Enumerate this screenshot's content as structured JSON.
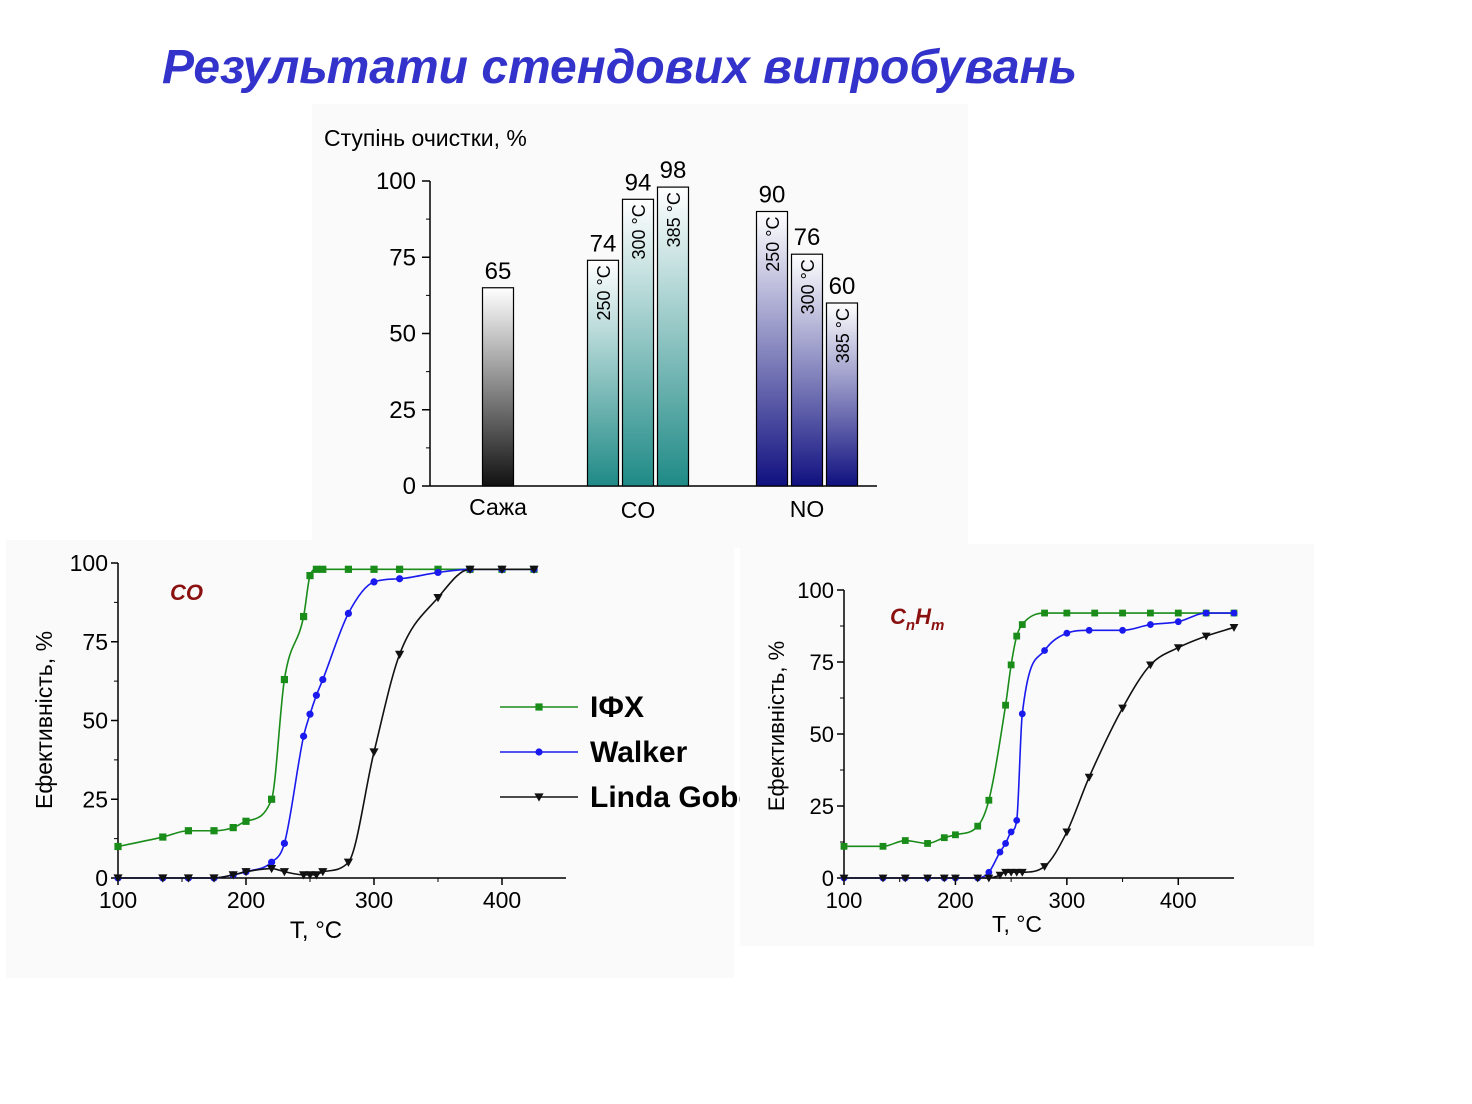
{
  "slide": {
    "title": "Результати стендових випробувань"
  },
  "chart_data": [
    {
      "type": "bar",
      "ylabel": "Ступінь очистки, %",
      "ylim": [
        0,
        100
      ],
      "yticks": [
        0,
        25,
        50,
        75,
        100
      ],
      "groups": [
        {
          "name": "Сажа",
          "bars": [
            {
              "value": 65,
              "temp": ""
            }
          ],
          "colors": [
            "#111111",
            "#ffffff"
          ]
        },
        {
          "name": "CO",
          "bars": [
            {
              "value": 74,
              "temp": "250 °C"
            },
            {
              "value": 94,
              "temp": "300 °C"
            },
            {
              "value": 98,
              "temp": "385 °C"
            }
          ],
          "colors": [
            "#1f8a86",
            "#ffffff"
          ]
        },
        {
          "name": "NO",
          "bars": [
            {
              "value": 90,
              "temp": "250 °C"
            },
            {
              "value": 76,
              "temp": "300 °C"
            },
            {
              "value": 60,
              "temp": "385 °C"
            }
          ],
          "colors": [
            "#101080",
            "#ffffff"
          ]
        }
      ]
    },
    {
      "type": "line",
      "annotation": "CO",
      "xlabel": "T, °C",
      "ylabel": "Ефективність, %",
      "xlim": [
        100,
        450
      ],
      "ylim": [
        0,
        100
      ],
      "xticks": [
        100,
        200,
        300,
        400
      ],
      "yticks": [
        0,
        25,
        50,
        75,
        100
      ],
      "legend_position": "right",
      "series": [
        {
          "name": "ІФХ",
          "color": "#1a8c1a",
          "marker": "square",
          "x": [
            100,
            135,
            155,
            175,
            190,
            200,
            220,
            230,
            245,
            250,
            255,
            260,
            280,
            300,
            320,
            350,
            375,
            400,
            425
          ],
          "y": [
            10,
            13,
            15,
            15,
            16,
            18,
            25,
            63,
            83,
            96,
            98,
            98,
            98,
            98,
            98,
            98,
            98,
            98,
            98
          ]
        },
        {
          "name": "Walker",
          "color": "#1a1aee",
          "marker": "circle",
          "x": [
            100,
            135,
            155,
            175,
            190,
            200,
            220,
            230,
            245,
            250,
            255,
            260,
            280,
            300,
            320,
            350,
            375,
            400,
            425
          ],
          "y": [
            0,
            0,
            0,
            0,
            1,
            2,
            5,
            11,
            45,
            52,
            58,
            63,
            84,
            94,
            95,
            97,
            98,
            98,
            98
          ]
        },
        {
          "name": "Linda Gobex",
          "color": "#111111",
          "marker": "triangle-down",
          "x": [
            100,
            135,
            155,
            175,
            190,
            200,
            220,
            230,
            245,
            250,
            255,
            260,
            280,
            300,
            320,
            350,
            375,
            400,
            425
          ],
          "y": [
            0,
            0,
            0,
            0,
            1,
            2,
            3,
            2,
            1,
            1,
            1,
            2,
            5,
            40,
            71,
            89,
            98,
            98,
            98
          ]
        }
      ]
    },
    {
      "type": "line",
      "annotation": "CnHm",
      "xlabel": "T, °C",
      "ylabel": "Ефективність, %",
      "xlim": [
        100,
        450
      ],
      "ylim": [
        0,
        100
      ],
      "xticks": [
        100,
        200,
        300,
        400
      ],
      "yticks": [
        0,
        25,
        50,
        75,
        100
      ],
      "series": [
        {
          "name": "ІФХ",
          "color": "#1a8c1a",
          "marker": "square",
          "x": [
            100,
            135,
            155,
            175,
            190,
            200,
            220,
            230,
            245,
            250,
            255,
            260,
            280,
            300,
            325,
            350,
            375,
            400,
            425,
            450
          ],
          "y": [
            11,
            11,
            13,
            12,
            14,
            15,
            18,
            27,
            60,
            74,
            84,
            88,
            92,
            92,
            92,
            92,
            92,
            92,
            92,
            92
          ]
        },
        {
          "name": "Walker",
          "color": "#1a1aee",
          "marker": "circle",
          "x": [
            100,
            135,
            155,
            175,
            190,
            200,
            220,
            230,
            240,
            245,
            250,
            255,
            260,
            280,
            300,
            320,
            350,
            375,
            400,
            425,
            450
          ],
          "y": [
            0,
            0,
            0,
            0,
            0,
            0,
            0,
            2,
            9,
            12,
            16,
            20,
            57,
            79,
            85,
            86,
            86,
            88,
            89,
            92,
            92
          ]
        },
        {
          "name": "Linda Gobex",
          "color": "#111111",
          "marker": "triangle-down",
          "x": [
            100,
            135,
            155,
            175,
            190,
            200,
            220,
            230,
            240,
            245,
            250,
            255,
            260,
            280,
            300,
            320,
            350,
            375,
            400,
            425,
            450
          ],
          "y": [
            0,
            0,
            0,
            0,
            0,
            0,
            0,
            0,
            1,
            2,
            2,
            2,
            2,
            4,
            16,
            35,
            59,
            74,
            80,
            84,
            87
          ]
        }
      ]
    }
  ]
}
